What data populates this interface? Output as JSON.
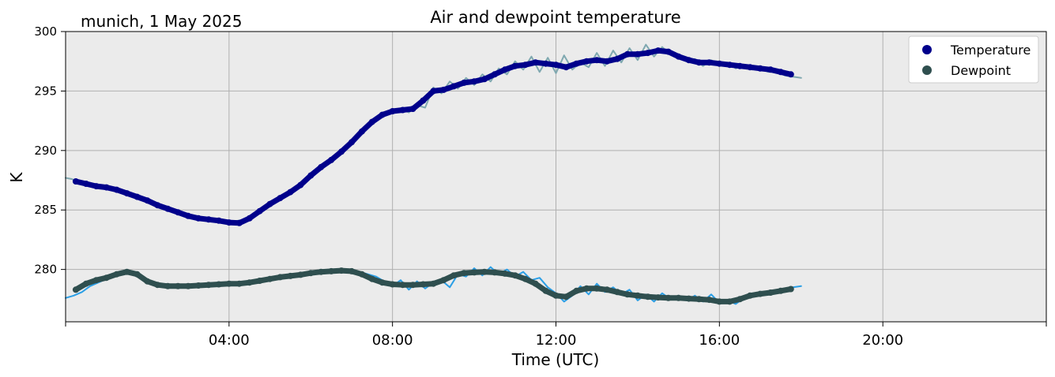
{
  "location_label": "munich, 1 May 2025",
  "chart_data": {
    "type": "line",
    "title": "Air and dewpoint temperature",
    "xlabel": "Time (UTC)",
    "ylabel": "K",
    "xlim_hours": [
      0,
      24
    ],
    "ylim": [
      275.6,
      300.0
    ],
    "x_ticks": [
      {
        "hour": 4,
        "label": "04:00"
      },
      {
        "hour": 8,
        "label": "08:00"
      },
      {
        "hour": 12,
        "label": "12:00"
      },
      {
        "hour": 16,
        "label": "16:00"
      },
      {
        "hour": 20,
        "label": "20:00"
      }
    ],
    "y_ticks": [
      {
        "value": 280,
        "label": "280"
      },
      {
        "value": 285,
        "label": "285"
      },
      {
        "value": 290,
        "label": "290"
      },
      {
        "value": 295,
        "label": "295"
      },
      {
        "value": 300,
        "label": "300"
      }
    ],
    "grid": true,
    "legend_position": "top-right",
    "background_color": "#ebebeb",
    "series": [
      {
        "name": "Temperature",
        "kind": "smoothed",
        "color": "#00008b",
        "x": [
          0.25,
          0.5,
          0.75,
          1.0,
          1.25,
          1.5,
          1.75,
          2.0,
          2.25,
          2.5,
          2.75,
          3.0,
          3.25,
          3.5,
          3.75,
          4.0,
          4.25,
          4.5,
          4.75,
          5.0,
          5.25,
          5.5,
          5.75,
          6.0,
          6.25,
          6.5,
          6.75,
          7.0,
          7.25,
          7.5,
          7.75,
          8.0,
          8.25,
          8.5,
          8.75,
          9.0,
          9.25,
          9.5,
          9.75,
          10.0,
          10.25,
          10.5,
          10.75,
          11.0,
          11.25,
          11.5,
          11.75,
          12.0,
          12.25,
          12.5,
          12.75,
          13.0,
          13.25,
          13.5,
          13.75,
          14.0,
          14.25,
          14.5,
          14.75,
          15.0,
          15.25,
          15.5,
          15.75,
          16.0,
          16.25,
          16.5,
          16.75,
          17.0,
          17.25,
          17.5,
          17.75
        ],
        "y": [
          287.4,
          287.2,
          287.0,
          286.9,
          286.7,
          286.4,
          286.1,
          285.8,
          285.4,
          285.1,
          284.8,
          284.5,
          284.3,
          284.2,
          284.1,
          283.95,
          283.9,
          284.3,
          284.9,
          285.5,
          286.0,
          286.5,
          287.1,
          287.9,
          288.6,
          289.2,
          289.9,
          290.7,
          291.6,
          292.4,
          293.0,
          293.3,
          293.4,
          293.5,
          294.2,
          295.0,
          295.1,
          295.4,
          295.7,
          295.8,
          296.0,
          296.4,
          296.8,
          297.1,
          297.2,
          297.4,
          297.3,
          297.2,
          297.0,
          297.3,
          297.5,
          297.6,
          297.5,
          297.7,
          298.1,
          298.1,
          298.2,
          298.4,
          298.3,
          297.9,
          297.6,
          297.4,
          297.4,
          297.3,
          297.2,
          297.1,
          297.0,
          296.9,
          296.8,
          296.6,
          296.4
        ]
      },
      {
        "name": "Dewpoint",
        "kind": "smoothed",
        "color": "#2f4f4f",
        "x": [
          0.25,
          0.5,
          0.75,
          1.0,
          1.25,
          1.5,
          1.75,
          2.0,
          2.25,
          2.5,
          2.75,
          3.0,
          3.25,
          3.5,
          3.75,
          4.0,
          4.25,
          4.5,
          4.75,
          5.0,
          5.25,
          5.5,
          5.75,
          6.0,
          6.25,
          6.5,
          6.75,
          7.0,
          7.25,
          7.5,
          7.75,
          8.0,
          8.25,
          8.5,
          8.75,
          9.0,
          9.25,
          9.5,
          9.75,
          10.0,
          10.25,
          10.5,
          10.75,
          11.0,
          11.25,
          11.5,
          11.75,
          12.0,
          12.25,
          12.5,
          12.75,
          13.0,
          13.25,
          13.5,
          13.75,
          14.0,
          14.25,
          14.5,
          14.75,
          15.0,
          15.25,
          15.5,
          15.75,
          16.0,
          16.25,
          16.5,
          16.75,
          17.0,
          17.25,
          17.5,
          17.75
        ],
        "y": [
          278.3,
          278.8,
          279.1,
          279.3,
          279.6,
          279.8,
          279.6,
          279.0,
          278.7,
          278.6,
          278.6,
          278.6,
          278.65,
          278.7,
          278.75,
          278.8,
          278.8,
          278.9,
          279.05,
          279.2,
          279.35,
          279.45,
          279.55,
          279.7,
          279.8,
          279.85,
          279.9,
          279.85,
          279.6,
          279.2,
          278.9,
          278.75,
          278.7,
          278.7,
          278.75,
          278.8,
          279.1,
          279.5,
          279.7,
          279.75,
          279.8,
          279.75,
          279.65,
          279.5,
          279.2,
          278.8,
          278.2,
          277.8,
          277.7,
          278.2,
          278.4,
          278.4,
          278.3,
          278.1,
          277.9,
          277.8,
          277.7,
          277.65,
          277.6,
          277.6,
          277.55,
          277.5,
          277.45,
          277.3,
          277.3,
          277.5,
          277.8,
          277.95,
          278.05,
          278.2,
          278.35
        ]
      },
      {
        "name": "",
        "kind": "raw",
        "color": "#7fa8b0",
        "x": [
          0.0,
          0.15,
          0.3,
          0.5,
          1.0,
          1.5,
          2.0,
          2.5,
          3.0,
          3.5,
          4.0,
          4.5,
          5.0,
          5.5,
          6.0,
          6.5,
          7.0,
          7.5,
          8.0,
          8.2,
          8.4,
          8.6,
          8.8,
          9.0,
          9.2,
          9.4,
          9.6,
          9.8,
          10.0,
          10.2,
          10.4,
          10.6,
          10.8,
          11.0,
          11.2,
          11.4,
          11.6,
          11.8,
          12.0,
          12.2,
          12.4,
          12.6,
          12.8,
          13.0,
          13.2,
          13.4,
          13.6,
          13.8,
          14.0,
          14.2,
          14.4,
          14.6,
          14.8,
          15.0,
          15.2,
          15.4,
          15.6,
          15.8,
          16.0,
          16.2,
          16.4,
          16.6,
          16.8,
          17.0,
          17.2,
          17.4,
          17.6,
          17.8,
          18.0
        ],
        "y": [
          287.7,
          287.6,
          287.4,
          287.2,
          286.9,
          286.4,
          285.8,
          285.1,
          284.5,
          284.2,
          283.95,
          284.3,
          285.5,
          286.5,
          287.9,
          289.2,
          290.7,
          292.4,
          293.3,
          293.5,
          293.2,
          293.8,
          293.6,
          295.3,
          294.8,
          295.8,
          295.2,
          296.1,
          295.5,
          296.4,
          295.8,
          296.9,
          296.4,
          297.5,
          296.8,
          297.9,
          296.6,
          297.8,
          296.5,
          298.0,
          296.8,
          297.4,
          297.0,
          298.2,
          297.1,
          298.4,
          297.4,
          298.6,
          297.6,
          298.9,
          297.9,
          298.7,
          298.1,
          298.0,
          297.5,
          297.7,
          297.1,
          297.6,
          297.2,
          297.4,
          296.9,
          297.2,
          296.8,
          296.9,
          296.6,
          296.7,
          296.3,
          296.2,
          296.1
        ]
      },
      {
        "name": "",
        "kind": "raw",
        "color": "#2b9fe6",
        "x": [
          0.0,
          0.2,
          0.4,
          0.6,
          1.0,
          1.5,
          2.0,
          2.5,
          3.0,
          3.5,
          4.0,
          4.5,
          5.0,
          5.5,
          6.0,
          6.5,
          7.0,
          7.3,
          7.6,
          7.8,
          8.0,
          8.2,
          8.4,
          8.6,
          8.8,
          9.0,
          9.2,
          9.4,
          9.6,
          9.8,
          10.0,
          10.2,
          10.4,
          10.6,
          10.8,
          11.0,
          11.2,
          11.4,
          11.6,
          11.8,
          12.0,
          12.2,
          12.4,
          12.6,
          12.8,
          13.0,
          13.2,
          13.4,
          13.6,
          13.8,
          14.0,
          14.2,
          14.4,
          14.6,
          14.8,
          15.0,
          15.2,
          15.4,
          15.6,
          15.8,
          16.0,
          16.2,
          16.4,
          16.6,
          16.8,
          17.0,
          17.2,
          17.4,
          17.6,
          17.8,
          18.0
        ],
        "y": [
          277.6,
          277.8,
          278.1,
          278.6,
          279.2,
          279.8,
          279.0,
          278.6,
          278.6,
          278.7,
          278.8,
          278.9,
          279.2,
          279.5,
          279.7,
          279.85,
          279.9,
          279.7,
          279.4,
          279.0,
          278.6,
          279.1,
          278.3,
          279.0,
          278.4,
          278.9,
          279.1,
          278.5,
          279.6,
          279.4,
          280.1,
          279.5,
          280.2,
          279.6,
          280.0,
          279.4,
          279.8,
          279.1,
          279.3,
          278.5,
          278.0,
          277.3,
          277.8,
          278.6,
          277.9,
          278.8,
          278.1,
          278.5,
          277.9,
          278.3,
          277.4,
          277.9,
          277.3,
          278.0,
          277.5,
          277.8,
          277.4,
          277.8,
          277.3,
          277.9,
          277.2,
          277.4,
          277.1,
          277.6,
          277.7,
          278.0,
          277.9,
          278.2,
          278.3,
          278.5,
          278.6
        ]
      }
    ]
  }
}
